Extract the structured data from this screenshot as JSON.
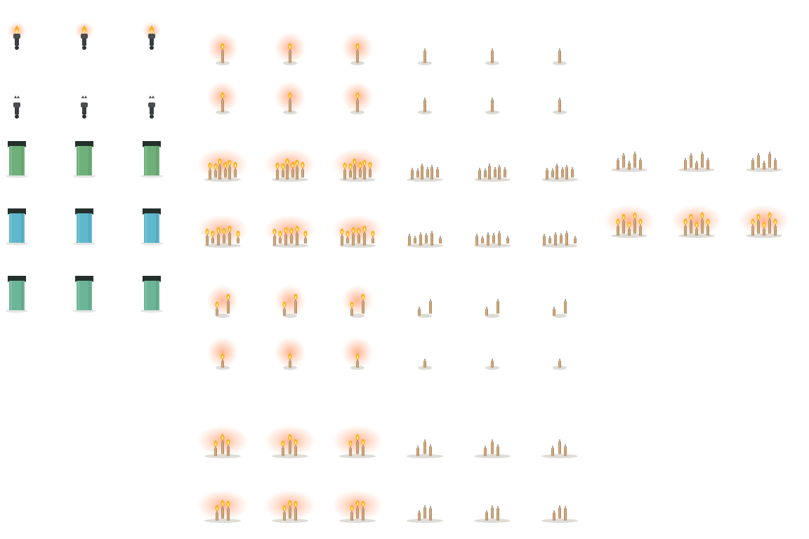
{
  "sheet": {
    "type": "sprite-sheet",
    "theme": "light-sources",
    "background": "#ffffff",
    "colors": {
      "flame": "#ffb020",
      "flame_core": "#ffe680",
      "glow": "#ff7a3c",
      "wax": "#d9b48a",
      "wax_shade": "#a8825c",
      "bracket_metal": "#4a4e50",
      "banner_green": "#6fb07a",
      "banner_teal": "#5fb8cc",
      "banner_mint": "#6cb597",
      "banner_cap": "#24302c"
    }
  },
  "groups": [
    {
      "name": "wall-torch-lit",
      "icon": "torch-lit-icon",
      "frames": 3
    },
    {
      "name": "wall-torch-unlit",
      "icon": "torch-unlit-icon",
      "frames": 3
    },
    {
      "name": "banner-green",
      "icon": "banner-green-icon",
      "frames": 3
    },
    {
      "name": "banner-teal",
      "icon": "banner-teal-icon",
      "frames": 3
    },
    {
      "name": "banner-mint",
      "icon": "banner-mint-icon",
      "frames": 3
    },
    {
      "name": "single-candle",
      "icon": "candle-icon",
      "lit_frames": 3,
      "unlit_frames": 3,
      "rows": 2
    },
    {
      "name": "candle-cluster",
      "icon": "candle-cluster-icon",
      "lit_frames": 3,
      "unlit_frames": 3
    },
    {
      "name": "candle-row",
      "icon": "candle-row-icon",
      "lit_frames": 3,
      "unlit_frames": 3
    },
    {
      "name": "candle-cluster-alt",
      "icon": "candle-cluster-alt-icon",
      "lit_frames": 3,
      "unlit_frames": 3
    },
    {
      "name": "twin-candles",
      "icon": "twin-candles-icon",
      "lit_frames": 3,
      "unlit_frames": 3
    },
    {
      "name": "short-candle",
      "icon": "short-candle-icon",
      "lit_frames": 3,
      "unlit_frames": 3
    },
    {
      "name": "triple-candles",
      "icon": "triple-candles-icon",
      "lit_frames": 3,
      "unlit_frames": 3
    },
    {
      "name": "triple-candles-low",
      "icon": "triple-candles-low-icon",
      "lit_frames": 3,
      "unlit_frames": 3
    }
  ]
}
